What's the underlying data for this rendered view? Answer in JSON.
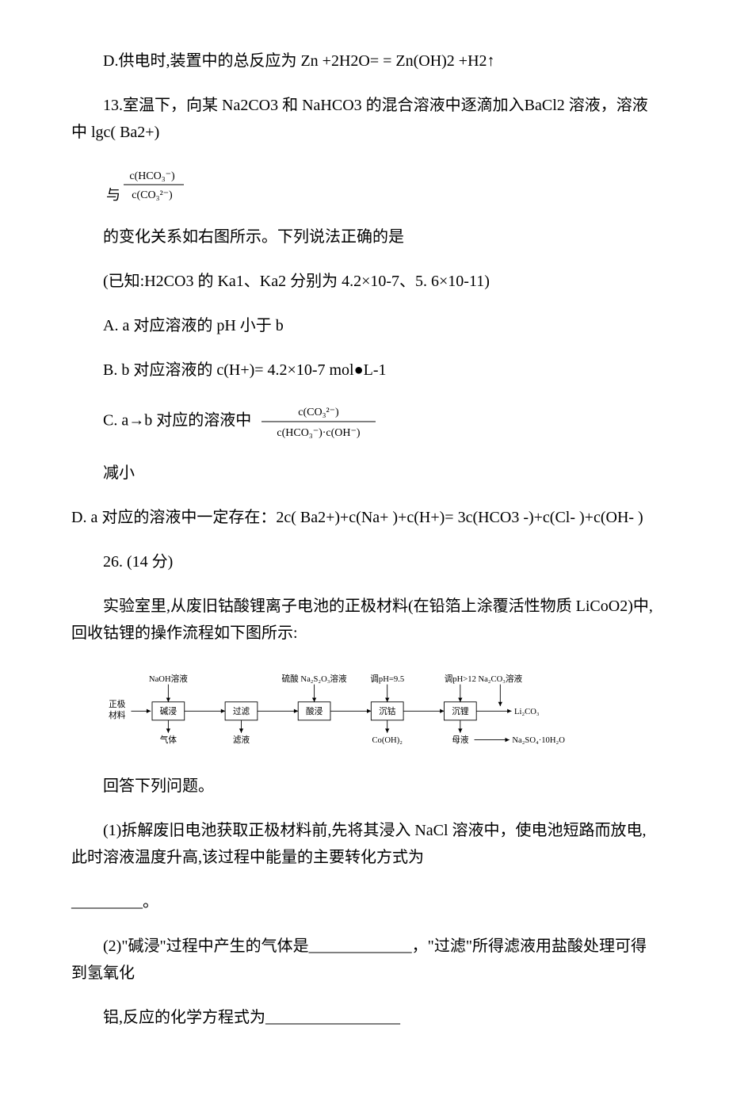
{
  "watermark": {
    "text": ""
  },
  "q12": {
    "optD": "D.供电时,装置中的总反应为 Zn +2H2O= = Zn(OH)2 +H2↑"
  },
  "q13": {
    "stem": "13.室温下，向某 Na2CO3 和 NaHCO3 的混合溶液中逐滴加入BaCl2 溶液，溶液中 lgc( Ba2+)",
    "frac1_prefix": "与",
    "frac1": {
      "num": "c(HCO₃⁻)",
      "den": "c(CO₃²⁻)",
      "color": "#000000",
      "fontsize": 14,
      "pad_h": 6
    },
    "line2": "的变化关系如右图所示。下列说法正确的是",
    "known": "(已知:H2CO3 的 Ka1、Ka2 分别为 4.2×10-7、5. 6×10-11)",
    "optA": "A. a 对应溶液的 pH 小于 b",
    "optB": "B. b 对应溶液的 c(H+)= 4.2×10-7 mol●L-1",
    "optC_pre": "C. a→b 对应的溶液中",
    "frac2": {
      "num": "c(CO₃²⁻)",
      "den": "c(HCO₃⁻)·c(OH⁻)",
      "color": "#000000",
      "fontsize": 14,
      "pad_h": 6
    },
    "optC_after": "减小",
    "optD": "D. a 对应的溶液中一定存在：2c( Ba2+)+c(Na+ )+c(H+)= 3c(HCO3 -)+c(Cl- )+c(OH- )"
  },
  "q26": {
    "head": "26. (14 分)",
    "intro": "实验室里,从废旧钴酸锂离子电池的正极材料(在铅箔上涂覆活性物质 LiCoO2)中,回收钴锂的操作流程如下图所示:",
    "flowchart": {
      "bg": "#ffffff",
      "box_stroke": "#000000",
      "text_color": "#000000",
      "fontsize": 12,
      "left_label_top": "正极",
      "left_label_bot": "材料",
      "steps": [
        {
          "top": "NaOH溶液",
          "box": "碱浸",
          "bot": "气体"
        },
        {
          "top": "",
          "box": "过滤",
          "bot": "滤液"
        },
        {
          "top": "硫酸  Na₂S₂O₃溶液",
          "box": "酸浸",
          "bot": ""
        },
        {
          "top": "调pH=9.5",
          "box": "沉钴",
          "bot": "Co(OH)₂"
        },
        {
          "top": "调pH>12",
          "box": "沉锂",
          "bot": "母液"
        },
        {
          "top": "Na₂CO₃溶液",
          "box": "",
          "bot": ""
        }
      ],
      "right_out": "Li₂CO₃",
      "right_bottom": "Na₂SO₄·10H₂O"
    },
    "answer_head": "回答下列问题。",
    "part1_pre": "(1)拆解废旧电池获取正极材料前,先将其浸入 NaCl 溶液中，使电池短路而放电,此时溶液温度升高,该过程中能量的主要转化方式为",
    "part1_blank": "_________",
    "part1_suffix": "。",
    "part2_pre": "(2)\"碱浸\"过程中产生的气体是",
    "part2_blank1": "_____________",
    "part2_mid": "，\"过滤\"所得滤液用盐酸处理可得到氢氧化",
    "part2_line3_pre": "铝,反应的化学方程式为",
    "part2_blank2": "_________________"
  },
  "style": {
    "page_bg": "#ffffff",
    "text_color": "#000000",
    "body_fontsize": 20,
    "frac_label_color": "#000000"
  }
}
